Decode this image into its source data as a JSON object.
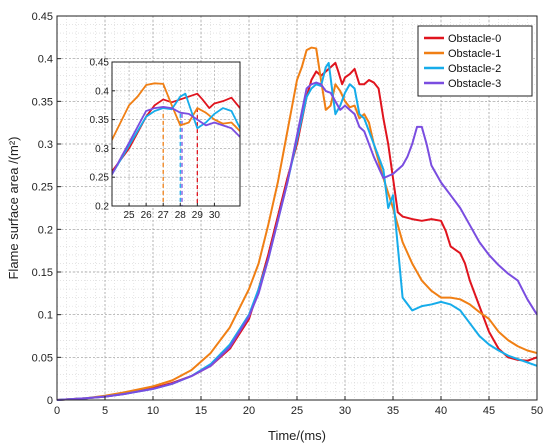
{
  "chart_data": {
    "type": "line",
    "title": "",
    "xlabel": "Time/(ms)",
    "ylabel": "Flame surface area /(m²)",
    "xlim": [
      0,
      50
    ],
    "ylim": [
      0,
      0.45
    ],
    "x_ticks": [
      0,
      5,
      10,
      15,
      20,
      25,
      30,
      35,
      40,
      45,
      50
    ],
    "x_tick_labels": [
      "0",
      "5",
      "10",
      "15",
      "20",
      "25",
      "30",
      "35",
      "40",
      "45",
      "50"
    ],
    "y_ticks": [
      0,
      0.05,
      0.1,
      0.15,
      0.2,
      0.25,
      0.3,
      0.35,
      0.4,
      0.45
    ],
    "y_tick_labels": [
      "0",
      "0.05",
      "0.1",
      "0.15",
      "0.2",
      "0.25",
      "0.3",
      "0.35",
      "0.4",
      "0.45"
    ],
    "grid": true,
    "legend_position": "top-right",
    "series": [
      {
        "name": "Obstacle-0",
        "color": "#e0141e",
        "points": [
          [
            0,
            0
          ],
          [
            3,
            0.002
          ],
          [
            5,
            0.004
          ],
          [
            7,
            0.007
          ],
          [
            10,
            0.014
          ],
          [
            12,
            0.02
          ],
          [
            14,
            0.028
          ],
          [
            16,
            0.04
          ],
          [
            18,
            0.06
          ],
          [
            20,
            0.095
          ],
          [
            21,
            0.13
          ],
          [
            22,
            0.17
          ],
          [
            23,
            0.215
          ],
          [
            24,
            0.26
          ],
          [
            25,
            0.3
          ],
          [
            26,
            0.355
          ],
          [
            26.5,
            0.375
          ],
          [
            27,
            0.385
          ],
          [
            27.5,
            0.38
          ],
          [
            28,
            0.385
          ],
          [
            28.5,
            0.39
          ],
          [
            29,
            0.395
          ],
          [
            29.3,
            0.385
          ],
          [
            29.7,
            0.37
          ],
          [
            30,
            0.378
          ],
          [
            30.5,
            0.382
          ],
          [
            31,
            0.388
          ],
          [
            31.5,
            0.37
          ],
          [
            32,
            0.37
          ],
          [
            32.5,
            0.375
          ],
          [
            33,
            0.372
          ],
          [
            33.5,
            0.365
          ],
          [
            34,
            0.33
          ],
          [
            34.5,
            0.3
          ],
          [
            35,
            0.26
          ],
          [
            35.5,
            0.22
          ],
          [
            36,
            0.215
          ],
          [
            37,
            0.212
          ],
          [
            38,
            0.21
          ],
          [
            39,
            0.212
          ],
          [
            40,
            0.21
          ],
          [
            40.5,
            0.198
          ],
          [
            41,
            0.18
          ],
          [
            42,
            0.172
          ],
          [
            42.5,
            0.16
          ],
          [
            43,
            0.14
          ],
          [
            44,
            0.11
          ],
          [
            45,
            0.08
          ],
          [
            46,
            0.06
          ],
          [
            47,
            0.05
          ],
          [
            48,
            0.047
          ],
          [
            49,
            0.046
          ],
          [
            50,
            0.05
          ]
        ]
      },
      {
        "name": "Obstacle-1",
        "color": "#f07f14",
        "points": [
          [
            0,
            0
          ],
          [
            3,
            0.002
          ],
          [
            5,
            0.005
          ],
          [
            7,
            0.009
          ],
          [
            10,
            0.016
          ],
          [
            12,
            0.023
          ],
          [
            14,
            0.035
          ],
          [
            16,
            0.055
          ],
          [
            18,
            0.085
          ],
          [
            20,
            0.13
          ],
          [
            21,
            0.16
          ],
          [
            22,
            0.205
          ],
          [
            23,
            0.255
          ],
          [
            24,
            0.315
          ],
          [
            25,
            0.375
          ],
          [
            25.5,
            0.39
          ],
          [
            26,
            0.41
          ],
          [
            26.5,
            0.413
          ],
          [
            27,
            0.412
          ],
          [
            27.5,
            0.375
          ],
          [
            28,
            0.34
          ],
          [
            28.5,
            0.345
          ],
          [
            29,
            0.37
          ],
          [
            29.5,
            0.362
          ],
          [
            30,
            0.35
          ],
          [
            30.5,
            0.343
          ],
          [
            31,
            0.345
          ],
          [
            31.5,
            0.33
          ],
          [
            32,
            0.335
          ],
          [
            32.5,
            0.325
          ],
          [
            33,
            0.3
          ],
          [
            34,
            0.26
          ],
          [
            35,
            0.225
          ],
          [
            36,
            0.185
          ],
          [
            37,
            0.16
          ],
          [
            38,
            0.14
          ],
          [
            39,
            0.128
          ],
          [
            40,
            0.12
          ],
          [
            41,
            0.12
          ],
          [
            42,
            0.118
          ],
          [
            43,
            0.112
          ],
          [
            44,
            0.103
          ],
          [
            45,
            0.095
          ],
          [
            46,
            0.08
          ],
          [
            47,
            0.07
          ],
          [
            48,
            0.063
          ],
          [
            49,
            0.058
          ],
          [
            50,
            0.055
          ]
        ]
      },
      {
        "name": "Obstacle-2",
        "color": "#16acea",
        "points": [
          [
            0,
            0
          ],
          [
            3,
            0.002
          ],
          [
            5,
            0.004
          ],
          [
            7,
            0.007
          ],
          [
            10,
            0.013
          ],
          [
            12,
            0.019
          ],
          [
            14,
            0.028
          ],
          [
            16,
            0.042
          ],
          [
            18,
            0.065
          ],
          [
            20,
            0.1
          ],
          [
            21,
            0.13
          ],
          [
            22,
            0.165
          ],
          [
            23,
            0.21
          ],
          [
            24,
            0.255
          ],
          [
            25,
            0.305
          ],
          [
            26,
            0.355
          ],
          [
            26.5,
            0.365
          ],
          [
            27,
            0.37
          ],
          [
            27.5,
            0.368
          ],
          [
            28,
            0.39
          ],
          [
            28.3,
            0.395
          ],
          [
            28.7,
            0.36
          ],
          [
            29,
            0.335
          ],
          [
            29.5,
            0.345
          ],
          [
            30,
            0.36
          ],
          [
            30.5,
            0.37
          ],
          [
            31,
            0.365
          ],
          [
            31.5,
            0.335
          ],
          [
            32,
            0.33
          ],
          [
            32.5,
            0.315
          ],
          [
            33,
            0.3
          ],
          [
            34,
            0.27
          ],
          [
            34.5,
            0.225
          ],
          [
            35,
            0.24
          ],
          [
            35.5,
            0.18
          ],
          [
            36,
            0.12
          ],
          [
            37,
            0.105
          ],
          [
            38,
            0.11
          ],
          [
            39,
            0.112
          ],
          [
            40,
            0.115
          ],
          [
            41,
            0.112
          ],
          [
            42,
            0.105
          ],
          [
            43,
            0.09
          ],
          [
            44,
            0.075
          ],
          [
            45,
            0.065
          ],
          [
            46,
            0.058
          ],
          [
            47,
            0.052
          ],
          [
            48,
            0.048
          ],
          [
            49,
            0.044
          ],
          [
            50,
            0.04
          ]
        ]
      },
      {
        "name": "Obstacle-3",
        "color": "#7a4de0",
        "points": [
          [
            0,
            0
          ],
          [
            3,
            0.002
          ],
          [
            5,
            0.004
          ],
          [
            7,
            0.007
          ],
          [
            10,
            0.013
          ],
          [
            12,
            0.019
          ],
          [
            14,
            0.028
          ],
          [
            16,
            0.04
          ],
          [
            18,
            0.062
          ],
          [
            20,
            0.098
          ],
          [
            21,
            0.125
          ],
          [
            22,
            0.165
          ],
          [
            23,
            0.21
          ],
          [
            24,
            0.255
          ],
          [
            25,
            0.31
          ],
          [
            26,
            0.365
          ],
          [
            26.5,
            0.37
          ],
          [
            27,
            0.372
          ],
          [
            27.5,
            0.37
          ],
          [
            28,
            0.362
          ],
          [
            28.5,
            0.36
          ],
          [
            29,
            0.35
          ],
          [
            29.5,
            0.34
          ],
          [
            30,
            0.345
          ],
          [
            30.5,
            0.34
          ],
          [
            31,
            0.335
          ],
          [
            31.5,
            0.32
          ],
          [
            32,
            0.315
          ],
          [
            33,
            0.285
          ],
          [
            34,
            0.26
          ],
          [
            35,
            0.265
          ],
          [
            36,
            0.275
          ],
          [
            36.5,
            0.285
          ],
          [
            37,
            0.3
          ],
          [
            37.5,
            0.32
          ],
          [
            38,
            0.32
          ],
          [
            38.5,
            0.3
          ],
          [
            39,
            0.275
          ],
          [
            40,
            0.255
          ],
          [
            41,
            0.24
          ],
          [
            42,
            0.225
          ],
          [
            43,
            0.205
          ],
          [
            44,
            0.185
          ],
          [
            45,
            0.17
          ],
          [
            46,
            0.158
          ],
          [
            47,
            0.148
          ],
          [
            48,
            0.14
          ],
          [
            49,
            0.118
          ],
          [
            50,
            0.1
          ]
        ]
      }
    ],
    "inset": {
      "xlim": [
        24,
        31.5
      ],
      "ylim": [
        0.2,
        0.45
      ],
      "x_ticks": [
        25,
        26,
        27,
        28,
        29,
        30
      ],
      "x_tick_labels": [
        "25",
        "26",
        "27",
        "28",
        "29",
        "30"
      ],
      "y_ticks": [
        0.2,
        0.25,
        0.3,
        0.35,
        0.4,
        0.45
      ],
      "y_tick_labels": [
        "0.2",
        "0.25",
        "0.3",
        "0.35",
        "0.4",
        "0.45"
      ],
      "markers": [
        {
          "x": 27,
          "y_top": 0.36,
          "color": "#f07f14",
          "style": "dashed"
        },
        {
          "x": 28,
          "y_top": 0.36,
          "color": "#16acea",
          "style": "dashed"
        },
        {
          "x": 28.1,
          "y_top": 0.36,
          "color": "#7a4de0",
          "style": "dashed"
        },
        {
          "x": 29,
          "y_top": 0.37,
          "color": "#e0141e",
          "style": "dashed"
        }
      ]
    }
  }
}
